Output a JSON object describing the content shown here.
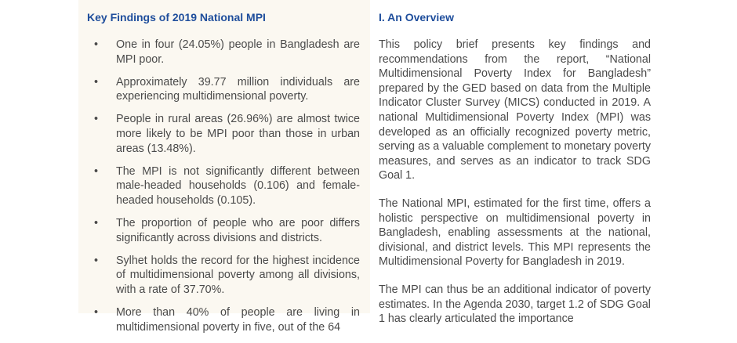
{
  "left": {
    "title": "Key Findings of 2019 National MPI",
    "bullets": [
      "One in four (24.05%) people in Bangladesh are MPI poor.",
      "Approximately 39.77 million individuals are experiencing multidimensional poverty.",
      "People in rural areas (26.96%) are almost twice more likely to be MPI poor than those in urban areas (13.48%).",
      "The MPI is not significantly different between male-headed households (0.106) and female-headed households (0.105).",
      "The proportion of people who are poor differs significantly across divisions and districts.",
      "Sylhet holds the record for the highest incidence of multidimensional poverty among all divisions, with a rate of 37.70%.",
      "More than 40% of people are living in multidimensional poverty in five, out of the 64"
    ]
  },
  "right": {
    "title": "I.  An Overview",
    "paragraphs": [
      "This policy brief presents key findings and recommendations from the report, “National Multidimensional Poverty Index for Bangladesh” prepared by the GED based on data from the Multiple Indicator Cluster Survey (MICS) conducted in 2019. A national Multidimensional Poverty Index (MPI) was developed as an officially recognized poverty metric, serving as a valuable complement to monetary poverty measures, and serves as an indicator to track SDG Goal 1.",
      "The National MPI, estimated for the first time, offers a holistic perspective on multidimensional poverty in Bangladesh, enabling assessments at the national, divisional, and district levels. This MPI represents the Multidimensional Poverty for Bangladesh in 2019.",
      "The MPI can thus be an additional indicator of poverty estimates. In the Agenda 2030, target 1.2 of SDG Goal 1 has clearly articulated the importance"
    ]
  }
}
